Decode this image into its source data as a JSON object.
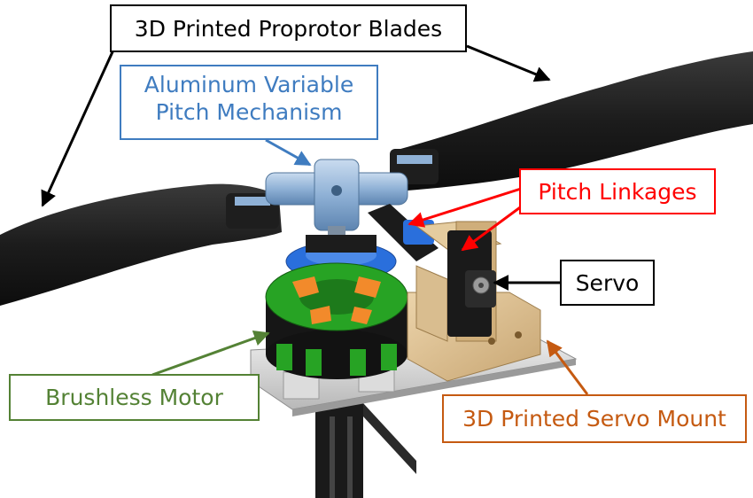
{
  "labels": {
    "blades": "3D Printed Proprotor Blades",
    "pitch_mechanism": [
      "Aluminum Variable",
      "Pitch Mechanism"
    ],
    "pitch_linkages": "Pitch Linkages",
    "servo": "Servo",
    "brushless_motor": "Brushless Motor",
    "servo_mount": "3D Printed Servo Mount"
  },
  "colors": {
    "blades": "#000000",
    "pitch_mechanism": "#3f7cc0",
    "pitch_linkages": "#ff0000",
    "servo": "#000000",
    "brushless_motor": "#548235",
    "servo_mount": "#c55a11",
    "blade_fill": "#202020",
    "hub_metal": "#8fb1d6",
    "motor_green": "#27a324",
    "motor_orange": "#f28a2b",
    "mount_tan": "#d9bd8f"
  }
}
